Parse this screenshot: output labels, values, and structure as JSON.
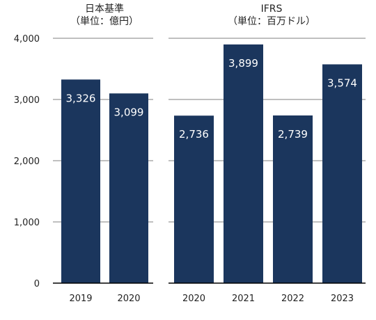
{
  "colors": {
    "bar": "#1b365d",
    "gridline": "#7f7f7f",
    "axis": "#000000",
    "text": "#222222",
    "label": "#ffffff"
  },
  "groups": [
    {
      "title_line1": "日本基準",
      "title_line2": "（単位：億円）"
    },
    {
      "title_line1": "IFRS",
      "title_line2": "（単位：百万ドル）"
    }
  ],
  "chart_data": [
    {
      "type": "bar",
      "categories": [
        "2019",
        "2020"
      ],
      "values": [
        3326,
        3099
      ],
      "value_labels": [
        "3,326",
        "3,099"
      ],
      "title": "日本基準（単位：億円）",
      "ylim": [
        0,
        4000
      ],
      "yticks": [
        0,
        1000,
        2000,
        3000,
        4000
      ],
      "ytick_labels": [
        "0",
        "1,000",
        "2,000",
        "3,000",
        "4,000"
      ],
      "grid": true
    },
    {
      "type": "bar",
      "categories": [
        "2020",
        "2021",
        "2022",
        "2023"
      ],
      "values": [
        2736,
        3899,
        2739,
        3574
      ],
      "value_labels": [
        "2,736",
        "3,899",
        "2,739",
        "3,574"
      ],
      "title": "IFRS（単位：百万ドル）",
      "ylim": [
        0,
        4000
      ],
      "grid": true
    }
  ]
}
